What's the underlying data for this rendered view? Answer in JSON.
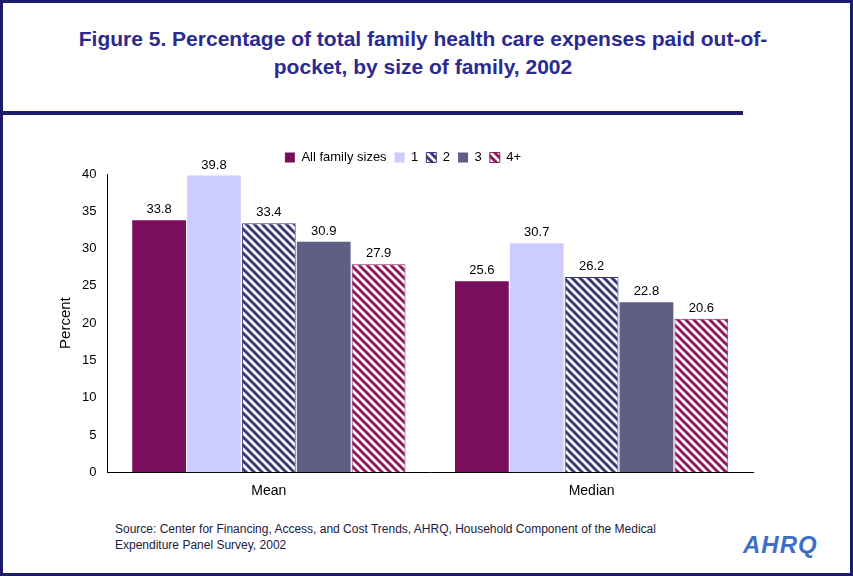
{
  "chart_data": {
    "type": "bar",
    "title": "Figure 5. Percentage of total family health care expenses paid out-of-pocket, by size of family, 2002",
    "categories": [
      "Mean",
      "Median"
    ],
    "series": [
      {
        "name": "All family sizes",
        "color": "#7b0d5e",
        "values": [
          33.8,
          25.6
        ]
      },
      {
        "name": "1",
        "color": "#ccccff",
        "values": [
          39.8,
          30.7
        ]
      },
      {
        "name": "2",
        "color": "#3a3a7a",
        "values": [
          33.4,
          26.2
        ]
      },
      {
        "name": "3",
        "color": "#5f5f86",
        "values": [
          30.9,
          22.8
        ]
      },
      {
        "name": "4+",
        "color": "#8b1a60",
        "values": [
          27.9,
          20.6
        ]
      }
    ],
    "y_label": "Percent",
    "ylim": [
      0,
      40
    ],
    "yticks": [
      0,
      5,
      10,
      15,
      20,
      25,
      30,
      35,
      40
    ],
    "grid": false,
    "legend": "top",
    "data_labels": true,
    "source": "Source: Center for Financing, Access, and Cost Trends, AHRQ, Household Component of the Medical Expenditure Panel Survey, 2002",
    "logo": "AHRQ"
  }
}
